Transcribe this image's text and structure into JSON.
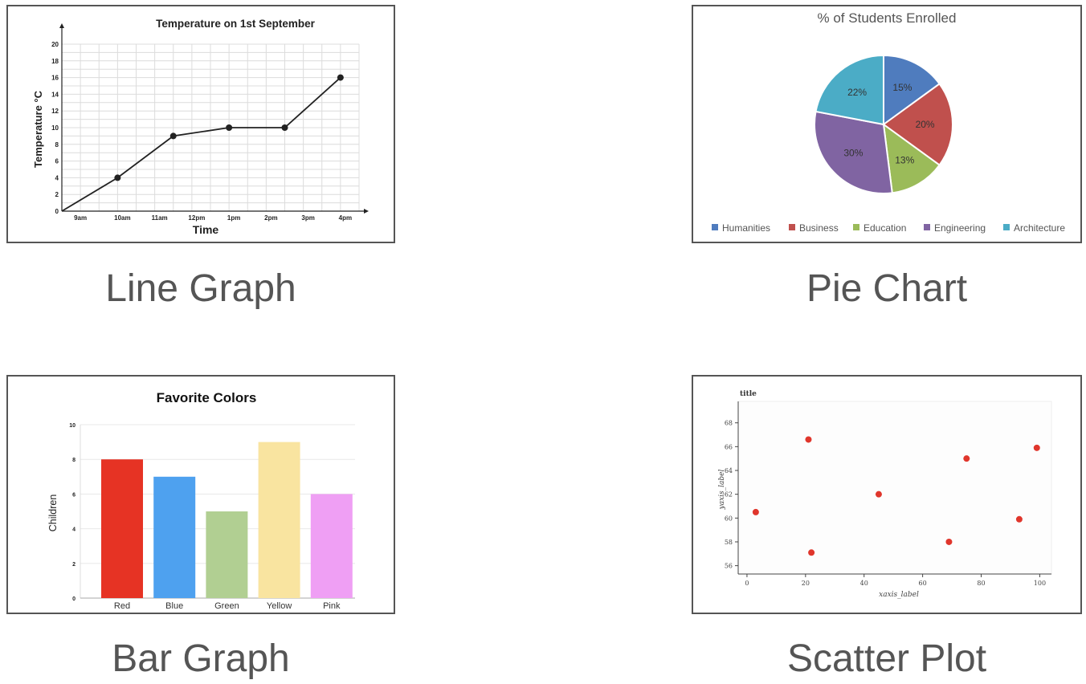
{
  "captions": {
    "line": "Line Graph",
    "pie": "Pie Chart",
    "bar": "Bar Graph",
    "scatter": "Scatter Plot"
  },
  "chart_data": [
    {
      "id": "line",
      "type": "line",
      "title": "Temperature on 1st September",
      "xlabel": "Time",
      "ylabel": "Temperature °C",
      "categories": [
        "9am",
        "10am",
        "11am",
        "12pm",
        "1pm",
        "2pm",
        "3pm",
        "4pm"
      ],
      "x": [
        0,
        1.5,
        3,
        4.5
      ],
      "series": [
        {
          "x": [
            0,
            1.5,
            3,
            4.5,
            6,
            7.5
          ],
          "values": [
            0,
            4,
            9,
            10,
            10,
            16
          ]
        }
      ],
      "yticks": [
        0,
        2,
        4,
        6,
        8,
        10,
        12,
        14,
        16,
        18,
        20
      ],
      "ylim": [
        0,
        20
      ],
      "grid": true,
      "color": "#222222"
    },
    {
      "id": "pie",
      "type": "pie",
      "title": "% of Students Enrolled",
      "labels": [
        "Humanities",
        "Business",
        "Education",
        "Engineering",
        "Architecture"
      ],
      "values": [
        15,
        20,
        13,
        30,
        22
      ],
      "value_labels": [
        "15%",
        "20%",
        "13%",
        "30%",
        "22%"
      ],
      "colors": [
        "#4f7cbe",
        "#c0504d",
        "#9bbb59",
        "#8064a2",
        "#4bacc6"
      ],
      "legend": "bottom"
    },
    {
      "id": "bar",
      "type": "bar",
      "title": "Favorite Colors",
      "ylabel": "Children",
      "categories": [
        "Red",
        "Blue",
        "Green",
        "Yellow",
        "Pink"
      ],
      "values": [
        8,
        7,
        5,
        9,
        6
      ],
      "colors": [
        "#e63324",
        "#4ea1ef",
        "#b1cf92",
        "#f9e4a0",
        "#ef9ff4"
      ],
      "yticks": [
        0,
        2,
        4,
        6,
        8,
        10
      ],
      "ylim": [
        0,
        10
      ],
      "grid": true
    },
    {
      "id": "scatter",
      "type": "scatter",
      "title": "title",
      "xlabel": "xaxis_label",
      "ylabel": "yaxis_label",
      "x": [
        3,
        21,
        22,
        45,
        69,
        75,
        93,
        99
      ],
      "y": [
        60.5,
        66.6,
        57.1,
        62,
        58,
        65,
        59.9,
        65.9
      ],
      "xticks": [
        0,
        20,
        40,
        60,
        80,
        100
      ],
      "yticks": [
        56,
        58,
        60,
        62,
        64,
        66,
        68
      ],
      "xlim": [
        -3,
        104
      ],
      "ylim": [
        55.3,
        69.8
      ],
      "color": "#e0362c"
    }
  ]
}
